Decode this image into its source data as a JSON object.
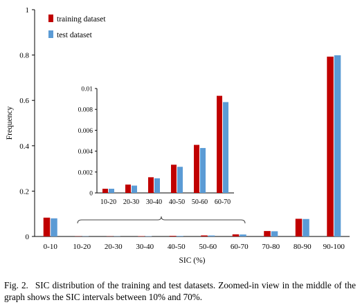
{
  "chart_data": [
    {
      "type": "bar",
      "xlabel": "SIC (%)",
      "ylabel": "Frequency",
      "ylim": [
        0,
        1
      ],
      "yticks": [
        0,
        0.2,
        0.4,
        0.6,
        0.8,
        1
      ],
      "ytick_labels": [
        "0",
        "0.2",
        "0.4",
        "0.6",
        "0.8",
        "1"
      ],
      "categories": [
        "0-10",
        "10-20",
        "20-30",
        "30-40",
        "40-50",
        "50-60",
        "60-70",
        "70-80",
        "80-90",
        "90-100"
      ],
      "series": [
        {
          "name": "training dataset",
          "values": [
            0.083,
            0.0004,
            0.0008,
            0.0015,
            0.0027,
            0.0046,
            0.0093,
            0.024,
            0.078,
            0.793
          ],
          "color": "#c00000"
        },
        {
          "name": "test dataset",
          "values": [
            0.08,
            0.0004,
            0.0007,
            0.0014,
            0.0025,
            0.0043,
            0.0087,
            0.023,
            0.077,
            0.799
          ],
          "color": "#5b9bd5"
        }
      ],
      "legend": "top-left",
      "grid": false
    },
    {
      "type": "bar",
      "role": "inset",
      "ylim": [
        0,
        0.01
      ],
      "yticks": [
        0,
        0.002,
        0.004,
        0.006,
        0.008,
        0.01
      ],
      "ytick_labels": [
        "0",
        "0.002",
        "0.004",
        "0.006",
        "0.008",
        "0.01"
      ],
      "categories": [
        "10-20",
        "20-30",
        "30-40",
        "40-50",
        "50-60",
        "60-70"
      ],
      "series": [
        {
          "name": "training dataset",
          "values": [
            0.0004,
            0.0008,
            0.0015,
            0.0027,
            0.0046,
            0.0093
          ],
          "color": "#c00000"
        },
        {
          "name": "test dataset",
          "values": [
            0.0004,
            0.0007,
            0.0014,
            0.0025,
            0.0043,
            0.0087
          ],
          "color": "#5b9bd5"
        }
      ],
      "grid": false
    }
  ],
  "caption": {
    "label": "Fig. 2.",
    "text": "SIC distribution of the training and test datasets. Zoomed-in view in the middle of the graph shows the SIC intervals between 10% and 70%."
  }
}
